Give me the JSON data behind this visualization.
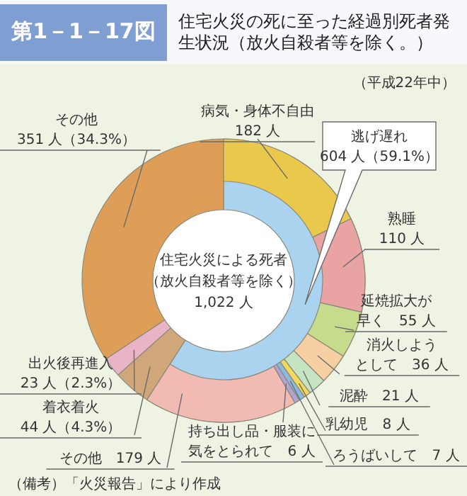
{
  "chart_data": [
    {
      "type": "donut",
      "title": "第1－1－17図",
      "subtitle": "住宅火災の死に至った経過別死者発生状況（放火自殺者等を除く。）",
      "legend": false,
      "annotations": [
        "（平成22年中）",
        "住宅火災による死者",
        "（放火自殺者等を除く）",
        "1,022 人",
        "（備考）「火災報告」により作成"
      ],
      "categories": [
        "逃げ遅れ",
        "着衣着火",
        "出火後再進入",
        "その他"
      ],
      "values": [
        604,
        44,
        23,
        351
      ],
      "colors": [
        "#a9d3ee",
        "#cfa77a",
        "#e9b4c6",
        "#de9e58"
      ],
      "value_labels": [
        "604 人（59.1%）",
        "44 人（4.3%）",
        "23 人（2.3%）",
        "351 人（34.3%）"
      ]
    },
    {
      "type": "donut",
      "legend": false,
      "categories": [
        "病気・身体不自由",
        "熟睡",
        "延焼拡大が早く",
        "消火しようとして",
        "泥酔",
        "乳幼児",
        "ろうばいして",
        "持ち出し品・服装に気をとられて",
        "その他"
      ],
      "values": [
        182,
        110,
        55,
        36,
        21,
        8,
        7,
        6,
        179
      ],
      "colors": [
        "#e9c84c",
        "#e9a3a3",
        "#c6dc8c",
        "#f6cfa2",
        "#c5e4c2",
        "#f3d85e",
        "#8cb9e2",
        "#b3a3d3",
        "#f1bab2"
      ],
      "value_labels": [
        "182 人",
        "110 人",
        "55 人",
        "36 人",
        "21 人",
        "8 人",
        "7 人",
        "6 人",
        "179 人"
      ]
    }
  ]
}
